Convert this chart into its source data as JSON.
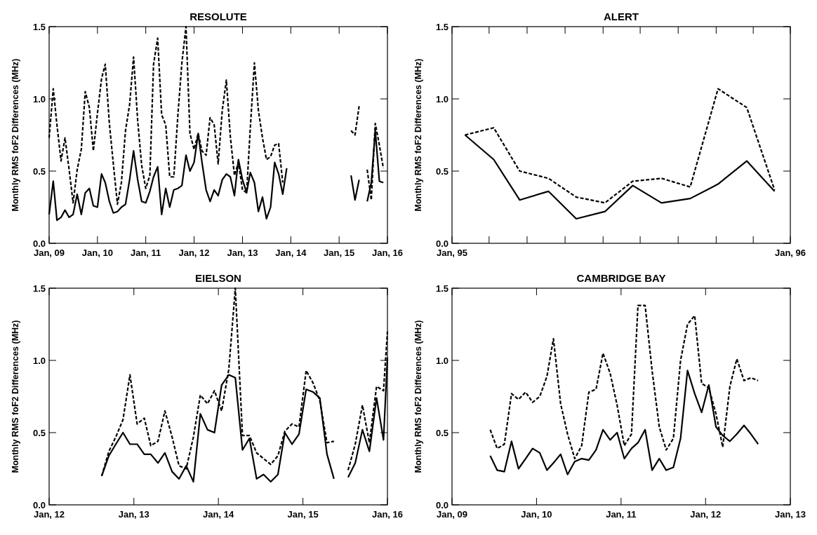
{
  "chart_data": [
    {
      "type": "line",
      "title": "RESOLUTE",
      "ylabel": "Monthly RMS foF2 Differences (MHz)",
      "ylim": [
        0,
        1.5
      ],
      "yticks": [
        {
          "value": 0,
          "label": "0.0"
        },
        {
          "value": 0.5,
          "label": "0.5"
        },
        {
          "value": 1,
          "label": "1.0"
        },
        {
          "value": 1.5,
          "label": "1.5"
        }
      ],
      "xlim": [
        "2009-01",
        "2016-01"
      ],
      "xticks": [
        {
          "value": "2009-01",
          "label": "Jan, 09"
        },
        {
          "value": "2010-01",
          "label": "Jan, 10"
        },
        {
          "value": "2011-01",
          "label": "Jan, 11"
        },
        {
          "value": "2012-01",
          "label": "Jan, 12"
        },
        {
          "value": "2013-01",
          "label": "Jan, 13"
        },
        {
          "value": "2014-01",
          "label": "Jan, 14"
        },
        {
          "value": "2015-01",
          "label": "Jan, 15"
        },
        {
          "value": "2016-01",
          "label": "Jan, 16"
        }
      ],
      "x": [
        "2009-01",
        "2009-02",
        "2009-03",
        "2009-04",
        "2009-05",
        "2009-06",
        "2009-07",
        "2009-08",
        "2009-09",
        "2009-10",
        "2009-11",
        "2009-12",
        "2010-01",
        "2010-02",
        "2010-03",
        "2010-04",
        "2010-05",
        "2010-06",
        "2010-07",
        "2010-08",
        "2010-09",
        "2010-10",
        "2010-11",
        "2010-12",
        "2011-01",
        "2011-02",
        "2011-03",
        "2011-04",
        "2011-05",
        "2011-06",
        "2011-07",
        "2011-08",
        "2011-09",
        "2011-10",
        "2011-11",
        "2011-12",
        "2012-01",
        "2012-02",
        "2012-03",
        "2012-04",
        "2012-05",
        "2012-06",
        "2012-07",
        "2012-08",
        "2012-09",
        "2012-10",
        "2012-11",
        "2012-12",
        "2013-01",
        "2013-02",
        "2013-03",
        "2013-04",
        "2013-05",
        "2013-06",
        "2013-07",
        "2013-08",
        "2013-09",
        "2013-10",
        "2013-11",
        "2013-12",
        "2014-01",
        "2014-02",
        "2014-03",
        "2014-04",
        "2014-05",
        "2014-06",
        "2014-07",
        "2014-08",
        "2014-09",
        "2014-10",
        "2014-11",
        "2014-12",
        "2015-01",
        "2015-02",
        "2015-03",
        "2015-04",
        "2015-05",
        "2015-06",
        "2015-07",
        "2015-08",
        "2015-09",
        "2015-10",
        "2015-11",
        "2015-12"
      ],
      "series": [
        {
          "color": "#000000",
          "line_style": "solid",
          "values": [
            0.2,
            0.43,
            0.16,
            0.18,
            0.23,
            0.18,
            0.2,
            0.34,
            0.2,
            0.35,
            0.38,
            0.26,
            0.25,
            0.48,
            0.42,
            0.29,
            0.21,
            0.22,
            0.25,
            0.27,
            0.44,
            0.64,
            0.44,
            0.29,
            0.28,
            0.36,
            0.46,
            0.53,
            0.2,
            0.38,
            0.25,
            0.37,
            0.38,
            0.4,
            0.61,
            0.5,
            0.56,
            0.76,
            0.56,
            0.37,
            0.29,
            0.37,
            0.33,
            0.44,
            0.48,
            0.46,
            0.33,
            0.58,
            0.44,
            0.35,
            0.49,
            0.42,
            0.22,
            0.32,
            0.17,
            0.25,
            0.56,
            0.48,
            0.34,
            0.52,
            null,
            null,
            null,
            null,
            null,
            null,
            null,
            null,
            null,
            null,
            null,
            null,
            null,
            null,
            null,
            0.47,
            0.3,
            0.44,
            null,
            0.29,
            0.42,
            0.78,
            0.43,
            0.42
          ]
        },
        {
          "color": "#000000",
          "line_style": "dashed",
          "values": [
            0.73,
            1.07,
            0.82,
            0.57,
            0.73,
            0.51,
            0.28,
            0.51,
            0.65,
            1.05,
            0.94,
            0.64,
            0.9,
            1.14,
            1.24,
            0.83,
            0.55,
            0.27,
            0.42,
            0.78,
            0.96,
            1.29,
            0.85,
            0.54,
            0.38,
            0.47,
            1.24,
            1.42,
            0.89,
            0.82,
            0.46,
            0.46,
            0.89,
            1.25,
            1.5,
            0.76,
            0.65,
            0.76,
            0.64,
            0.61,
            0.87,
            0.82,
            0.55,
            0.92,
            1.13,
            0.74,
            0.47,
            0.56,
            0.37,
            0.35,
            0.8,
            1.25,
            0.92,
            0.73,
            0.58,
            0.6,
            0.68,
            0.69,
            0.42,
            null,
            null,
            null,
            null,
            null,
            null,
            null,
            null,
            null,
            null,
            null,
            null,
            null,
            null,
            null,
            null,
            0.78,
            0.75,
            0.95,
            null,
            0.51,
            0.3,
            0.83,
            0.68,
            0.52
          ]
        }
      ]
    },
    {
      "type": "line",
      "title": "ALERT",
      "ylabel": "Monthly RMS foF2 Differences (MHz)",
      "ylim": [
        0,
        1.5
      ],
      "yticks": [
        {
          "value": 0,
          "label": "0.0"
        },
        {
          "value": 0.5,
          "label": "0.5"
        },
        {
          "value": 1,
          "label": "1.0"
        },
        {
          "value": 1.5,
          "label": "1.5"
        }
      ],
      "xlim": [
        "1995-01-01",
        "1996-01-01"
      ],
      "xticks": [
        {
          "value": "1995-01-01",
          "label": "Jan, 95"
        },
        {
          "value": "1995-02-10",
          "label": null
        },
        {
          "value": "1995-03-23",
          "label": null
        },
        {
          "value": "1995-05-03",
          "label": null
        },
        {
          "value": "1995-06-13",
          "label": null
        },
        {
          "value": "1995-07-23",
          "label": null
        },
        {
          "value": "1995-09-02",
          "label": null
        },
        {
          "value": "1995-10-13",
          "label": null
        },
        {
          "value": "1995-11-22",
          "label": null
        },
        {
          "value": "1996-01-01",
          "label": "Jan, 96"
        }
      ],
      "x": [
        "1995-01-15",
        "1995-02-15",
        "1995-03-15",
        "1995-04-15",
        "1995-05-15",
        "1995-06-15",
        "1995-07-15",
        "1995-08-15",
        "1995-09-15",
        "1995-10-15",
        "1995-11-15",
        "1995-12-15"
      ],
      "series": [
        {
          "color": "#000000",
          "line_style": "solid",
          "values": [
            0.75,
            0.58,
            0.3,
            0.36,
            0.17,
            0.22,
            0.4,
            0.28,
            0.31,
            0.41,
            0.57,
            0.36
          ]
        },
        {
          "color": "#000000",
          "line_style": "dashed",
          "values": [
            0.75,
            0.8,
            0.5,
            0.45,
            0.32,
            0.28,
            0.43,
            0.45,
            0.39,
            1.07,
            0.94,
            0.37
          ]
        }
      ]
    },
    {
      "type": "line",
      "title": "EIELSON",
      "ylabel": "Monthly RMS foF2 Differences (MHz)",
      "ylim": [
        0,
        1.5
      ],
      "yticks": [
        {
          "value": 0,
          "label": "0.0"
        },
        {
          "value": 0.5,
          "label": "0.5"
        },
        {
          "value": 1,
          "label": "1.0"
        },
        {
          "value": 1.5,
          "label": "1.5"
        }
      ],
      "xlim": [
        "2012-01-01",
        "2016-01-01"
      ],
      "xticks": [
        {
          "value": "2012-01-01",
          "label": "Jan, 12"
        },
        {
          "value": "2013-01-01",
          "label": "Jan, 13"
        },
        {
          "value": "2014-01-01",
          "label": "Jan, 14"
        },
        {
          "value": "2015-01-01",
          "label": "Jan, 15"
        },
        {
          "value": "2016-01-01",
          "label": "Jan, 16"
        }
      ],
      "x": [
        "2012-08-15",
        "2012-09-15",
        "2012-10-15",
        "2012-11-15",
        "2012-12-15",
        "2013-01-15",
        "2013-02-15",
        "2013-03-15",
        "2013-04-15",
        "2013-05-15",
        "2013-06-15",
        "2013-07-15",
        "2013-08-15",
        "2013-09-15",
        "2013-10-15",
        "2013-11-15",
        "2013-12-15",
        "2014-01-15",
        "2014-02-15",
        "2014-03-15",
        "2014-04-15",
        "2014-05-15",
        "2014-06-15",
        "2014-07-15",
        "2014-08-15",
        "2014-09-15",
        "2014-10-15",
        "2014-11-15",
        "2014-12-15",
        "2015-01-15",
        "2015-02-15",
        "2015-03-15",
        "2015-04-15",
        "2015-05-15",
        "2015-06-15",
        "2015-07-15",
        "2015-08-15",
        "2015-09-15",
        "2015-10-15",
        "2015-11-15",
        "2015-12-15",
        "2016-01-01"
      ],
      "series": [
        {
          "color": "#000000",
          "line_style": "solid",
          "values": [
            0.2,
            0.34,
            0.42,
            0.5,
            0.42,
            0.42,
            0.35,
            0.35,
            0.29,
            0.36,
            0.23,
            0.18,
            0.27,
            0.16,
            0.63,
            0.52,
            0.5,
            0.83,
            0.9,
            0.88,
            0.38,
            0.46,
            0.18,
            0.21,
            0.16,
            0.21,
            0.5,
            0.42,
            0.49,
            0.8,
            0.78,
            0.74,
            0.35,
            0.18,
            null,
            0.19,
            0.29,
            0.52,
            0.37,
            0.74,
            0.45,
            1.02
          ]
        },
        {
          "color": "#000000",
          "line_style": "dashed",
          "values": [
            0.2,
            0.37,
            0.47,
            0.59,
            0.9,
            0.56,
            0.6,
            0.41,
            0.44,
            0.65,
            0.47,
            0.27,
            0.25,
            0.47,
            0.76,
            0.7,
            0.79,
            0.65,
            0.94,
            1.5,
            0.48,
            0.48,
            0.36,
            0.32,
            0.28,
            0.34,
            0.51,
            0.56,
            0.54,
            0.93,
            0.84,
            0.72,
            0.43,
            0.44,
            null,
            0.24,
            0.42,
            0.69,
            0.43,
            0.82,
            0.79,
            1.2
          ]
        }
      ]
    },
    {
      "type": "line",
      "title": "CAMBRIDGE BAY",
      "ylabel": "Monthly RMS foF2 Differences (MHz)",
      "ylim": [
        0,
        1.5
      ],
      "yticks": [
        {
          "value": 0,
          "label": "0.0"
        },
        {
          "value": 0.5,
          "label": "0.5"
        },
        {
          "value": 1,
          "label": "1.0"
        },
        {
          "value": 1.5,
          "label": "1.5"
        }
      ],
      "xlim": [
        "2009-01-01",
        "2013-01-01"
      ],
      "xticks": [
        {
          "value": "2009-01-01",
          "label": "Jan, 09"
        },
        {
          "value": "2010-01-01",
          "label": "Jan, 10"
        },
        {
          "value": "2011-01-01",
          "label": "Jan, 11"
        },
        {
          "value": "2012-01-01",
          "label": "Jan, 12"
        },
        {
          "value": "2013-01-01",
          "label": "Jan, 13"
        }
      ],
      "x": [
        "2009-06-15",
        "2009-07-15",
        "2009-08-15",
        "2009-09-15",
        "2009-10-15",
        "2009-11-15",
        "2009-12-15",
        "2010-01-15",
        "2010-02-15",
        "2010-03-15",
        "2010-04-15",
        "2010-05-15",
        "2010-06-15",
        "2010-07-15",
        "2010-08-15",
        "2010-09-15",
        "2010-10-15",
        "2010-11-15",
        "2010-12-15",
        "2011-01-15",
        "2011-02-15",
        "2011-03-15",
        "2011-04-15",
        "2011-05-15",
        "2011-06-15",
        "2011-07-15",
        "2011-08-15",
        "2011-09-15",
        "2011-10-15",
        "2011-11-15",
        "2011-12-15",
        "2012-01-15",
        "2012-02-15",
        "2012-03-15",
        "2012-04-15",
        "2012-05-15",
        "2012-06-15",
        "2012-07-15",
        "2012-08-15"
      ],
      "series": [
        {
          "color": "#000000",
          "line_style": "solid",
          "values": [
            0.34,
            0.24,
            0.23,
            0.44,
            0.25,
            0.32,
            0.39,
            0.36,
            0.24,
            0.29,
            0.35,
            0.21,
            0.3,
            0.32,
            0.31,
            0.38,
            0.52,
            0.45,
            0.5,
            0.32,
            0.39,
            0.43,
            0.52,
            0.24,
            0.32,
            0.24,
            0.26,
            0.46,
            0.93,
            0.77,
            0.64,
            0.83,
            0.54,
            0.48,
            0.44,
            0.49,
            0.55,
            0.49,
            0.42
          ]
        },
        {
          "color": "#000000",
          "line_style": "dashed",
          "values": [
            0.52,
            0.39,
            0.42,
            0.77,
            0.73,
            0.78,
            0.71,
            0.75,
            0.89,
            1.15,
            0.7,
            0.49,
            0.32,
            0.41,
            0.78,
            0.8,
            1.05,
            0.91,
            0.69,
            0.41,
            0.49,
            1.38,
            1.38,
            0.93,
            0.54,
            0.38,
            0.46,
            1.0,
            1.25,
            1.31,
            0.84,
            0.81,
            0.63,
            0.4,
            0.82,
            1.01,
            0.86,
            0.88,
            0.86
          ]
        }
      ]
    }
  ]
}
